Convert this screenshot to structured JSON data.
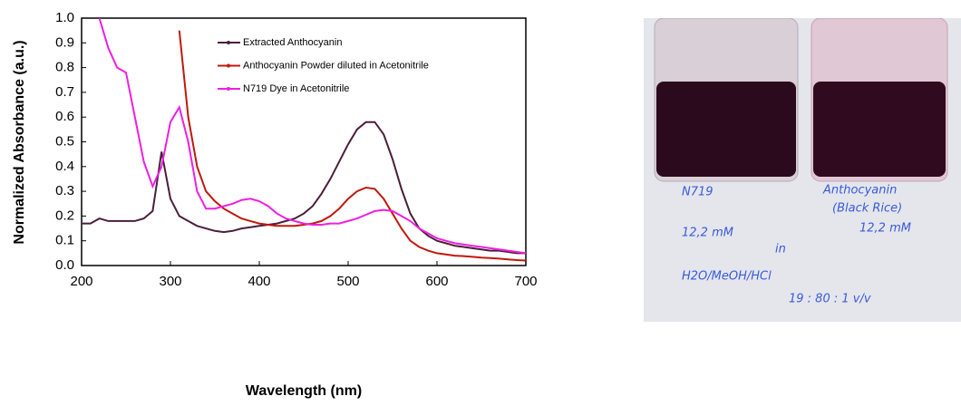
{
  "chart_data": {
    "type": "line",
    "xlabel": "Wavelength (nm)",
    "ylabel": "Normalized Absorbance (a.u.)",
    "x": [
      200,
      210,
      220,
      230,
      240,
      250,
      260,
      270,
      280,
      290,
      300,
      310,
      320,
      330,
      340,
      350,
      360,
      370,
      380,
      390,
      400,
      410,
      420,
      430,
      440,
      450,
      460,
      470,
      480,
      490,
      500,
      510,
      520,
      530,
      540,
      550,
      560,
      570,
      580,
      590,
      600,
      610,
      620,
      630,
      640,
      650,
      660,
      670,
      680,
      690,
      700
    ],
    "series": [
      {
        "name": "Extracted Anthocyanin",
        "color": "#4a1f3a",
        "values": [
          0.17,
          0.17,
          0.19,
          0.18,
          0.18,
          0.18,
          0.18,
          0.19,
          0.22,
          0.46,
          0.27,
          0.2,
          0.18,
          0.16,
          0.15,
          0.14,
          0.135,
          0.14,
          0.15,
          0.155,
          0.16,
          0.165,
          0.17,
          0.18,
          0.19,
          0.21,
          0.24,
          0.29,
          0.35,
          0.42,
          0.49,
          0.55,
          0.58,
          0.58,
          0.53,
          0.43,
          0.31,
          0.21,
          0.15,
          0.12,
          0.1,
          0.09,
          0.08,
          0.075,
          0.07,
          0.065,
          0.06,
          0.06,
          0.055,
          0.05,
          0.05
        ]
      },
      {
        "name": "Anthocyanin Powder diluted in Acetonitrile",
        "color": "#c0180c",
        "values": [
          null,
          null,
          null,
          null,
          null,
          null,
          null,
          null,
          null,
          null,
          null,
          0.95,
          0.6,
          0.4,
          0.3,
          0.26,
          0.23,
          0.21,
          0.19,
          0.18,
          0.17,
          0.165,
          0.16,
          0.16,
          0.16,
          0.165,
          0.17,
          0.18,
          0.2,
          0.23,
          0.27,
          0.3,
          0.315,
          0.31,
          0.27,
          0.21,
          0.15,
          0.1,
          0.075,
          0.06,
          0.05,
          0.045,
          0.04,
          0.038,
          0.035,
          0.032,
          0.03,
          0.028,
          0.025,
          0.022,
          0.02
        ]
      },
      {
        "name": "N719 Dye in Acetonitrile",
        "color": "#f01ee0",
        "values": [
          null,
          null,
          1.0,
          0.88,
          0.8,
          0.78,
          0.6,
          0.42,
          0.32,
          0.4,
          0.58,
          0.64,
          0.5,
          0.3,
          0.23,
          0.23,
          0.24,
          0.25,
          0.265,
          0.27,
          0.26,
          0.24,
          0.21,
          0.19,
          0.18,
          0.17,
          0.165,
          0.165,
          0.17,
          0.17,
          0.18,
          0.19,
          0.205,
          0.22,
          0.225,
          0.22,
          0.2,
          0.18,
          0.15,
          0.13,
          0.11,
          0.1,
          0.09,
          0.085,
          0.08,
          0.075,
          0.07,
          0.065,
          0.06,
          0.055,
          0.05
        ]
      }
    ],
    "xlim": [
      200,
      700
    ],
    "xticks": [
      200,
      300,
      400,
      500,
      600,
      700
    ],
    "ylim": [
      0,
      1
    ],
    "yticks": [
      {
        "value": 0,
        "label": "0.0"
      },
      0.1,
      0.2,
      0.3,
      0.4,
      0.5,
      0.6,
      0.7,
      0.8,
      0.9,
      {
        "value": 1,
        "label": "1.0"
      }
    ],
    "grid": false,
    "legend": "top"
  },
  "photo": {
    "labels": [
      "N719",
      "Anthocyanin",
      "(Black Rice)",
      "12,2 mM",
      "12,2 mM",
      "in",
      "H2O/MeOH/HCl",
      "19 : 80 : 1  v/v"
    ]
  }
}
